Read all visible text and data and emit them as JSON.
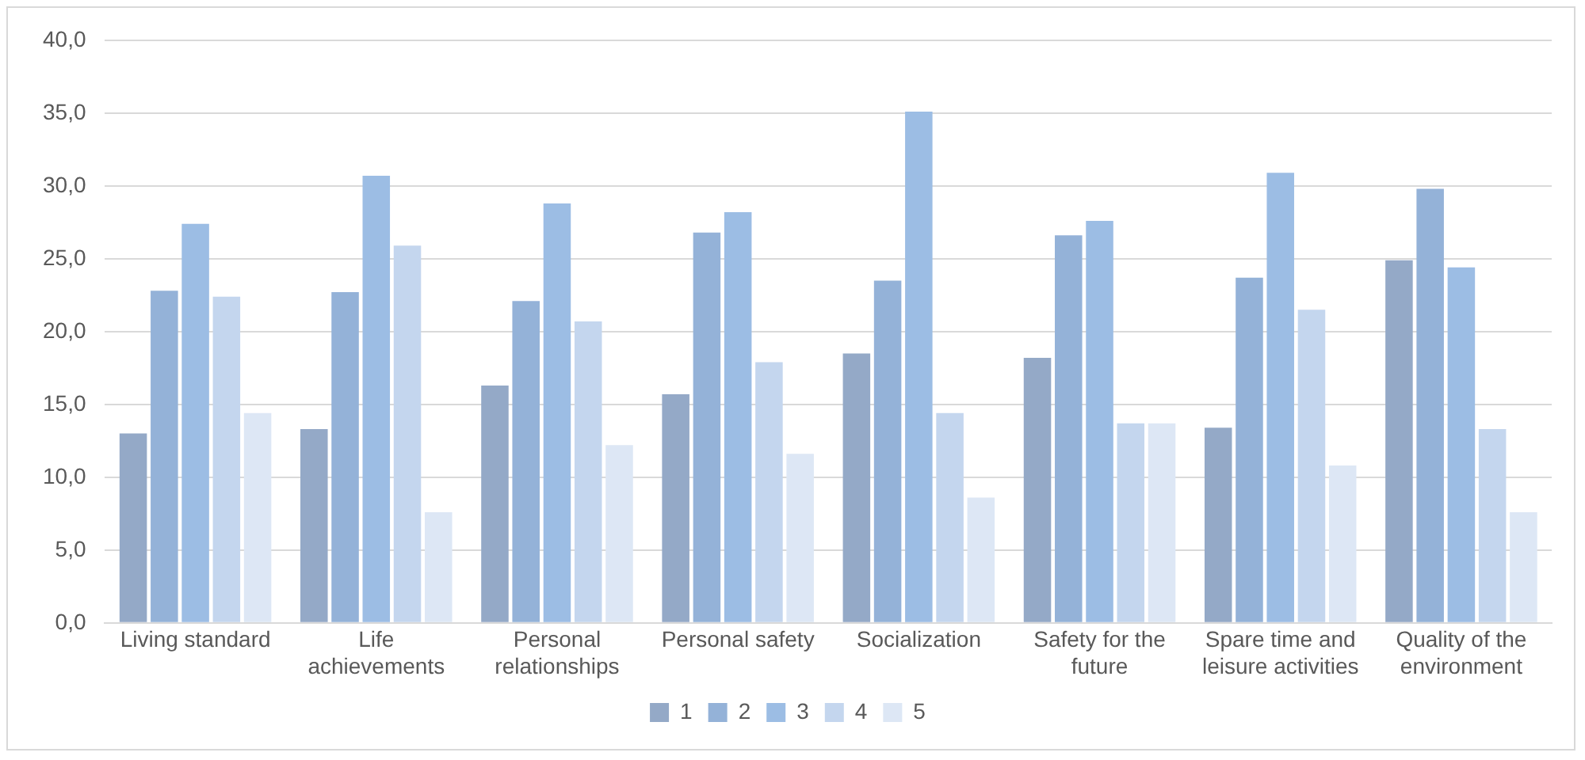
{
  "chart_data": {
    "type": "bar",
    "categories": [
      "Living standard",
      "Life achievements",
      "Personal relationships",
      "Personal safety",
      "Socialization",
      "Safety for the future",
      "Spare time and leisure activities",
      "Quality of the environment"
    ],
    "series": [
      {
        "name": "1",
        "color": "#94a9c7",
        "values": [
          13.0,
          13.3,
          16.3,
          15.7,
          18.5,
          18.2,
          13.4,
          24.9
        ]
      },
      {
        "name": "2",
        "color": "#94b2d8",
        "values": [
          22.8,
          22.7,
          22.1,
          26.8,
          23.5,
          26.6,
          23.7,
          29.8
        ]
      },
      {
        "name": "3",
        "color": "#9cbde4",
        "values": [
          27.4,
          30.7,
          28.8,
          28.2,
          35.1,
          27.6,
          30.9,
          24.4
        ]
      },
      {
        "name": "4",
        "color": "#c4d6ee",
        "values": [
          22.4,
          25.9,
          20.7,
          17.9,
          14.4,
          13.7,
          21.5,
          13.3
        ]
      },
      {
        "name": "5",
        "color": "#dde7f5",
        "values": [
          14.4,
          7.6,
          12.2,
          11.6,
          8.6,
          13.7,
          10.8,
          7.6
        ]
      }
    ],
    "ylim": [
      0,
      40
    ],
    "yticks": [
      {
        "value": 0,
        "label": "0,0"
      },
      {
        "value": 5,
        "label": "5,0"
      },
      {
        "value": 10,
        "label": "10,0"
      },
      {
        "value": 15,
        "label": "15,0"
      },
      {
        "value": 20,
        "label": "20,0"
      },
      {
        "value": 25,
        "label": "25,0"
      },
      {
        "value": 30,
        "label": "30,0"
      },
      {
        "value": 35,
        "label": "35,0"
      },
      {
        "value": 40,
        "label": "40,0"
      }
    ],
    "grid": "y",
    "legend": "bottom"
  }
}
